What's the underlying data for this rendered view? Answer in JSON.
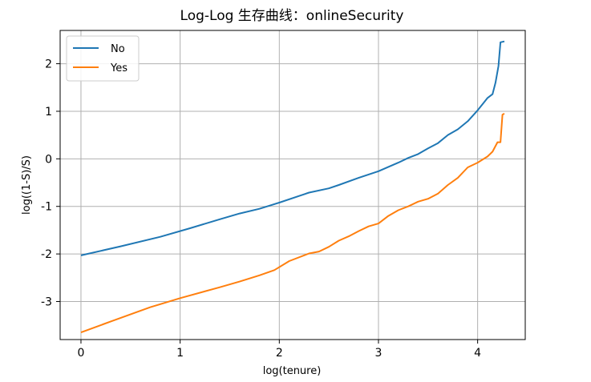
{
  "chart_data": {
    "type": "line",
    "title": "Log-Log 生存曲线：onlineSecurity",
    "xlabel": "log(tenure)",
    "ylabel": "log((1-S)/S)",
    "xlim": [
      -0.21,
      4.48
    ],
    "ylim": [
      -3.8,
      2.7
    ],
    "xticks": [
      0,
      1,
      2,
      3,
      4
    ],
    "xtick_labels": [
      "0",
      "1",
      "2",
      "3",
      "4"
    ],
    "yticks": [
      -3,
      -2,
      -1,
      0,
      1,
      2
    ],
    "ytick_labels": [
      "-3",
      "-2",
      "-1",
      "0",
      "1",
      "2"
    ],
    "grid": true,
    "legend_position": "top-left",
    "series": [
      {
        "name": "No",
        "color": "#1f77b4",
        "points": [
          [
            0,
            -2.03
          ],
          [
            0.4,
            -1.84
          ],
          [
            0.8,
            -1.64
          ],
          [
            1.1,
            -1.46
          ],
          [
            1.4,
            -1.27
          ],
          [
            1.6,
            -1.15
          ],
          [
            1.8,
            -1.05
          ],
          [
            2.0,
            -0.92
          ],
          [
            2.2,
            -0.78
          ],
          [
            2.3,
            -0.71
          ],
          [
            2.5,
            -0.62
          ],
          [
            2.6,
            -0.55
          ],
          [
            2.8,
            -0.4
          ],
          [
            2.9,
            -0.33
          ],
          [
            3.0,
            -0.26
          ],
          [
            3.1,
            -0.17
          ],
          [
            3.2,
            -0.08
          ],
          [
            3.3,
            0.02
          ],
          [
            3.4,
            0.1
          ],
          [
            3.5,
            0.22
          ],
          [
            3.6,
            0.33
          ],
          [
            3.7,
            0.5
          ],
          [
            3.8,
            0.62
          ],
          [
            3.9,
            0.79
          ],
          [
            4.0,
            1.02
          ],
          [
            4.1,
            1.28
          ],
          [
            4.15,
            1.36
          ],
          [
            4.18,
            1.6
          ],
          [
            4.21,
            1.95
          ],
          [
            4.23,
            2.45
          ],
          [
            4.27,
            2.47
          ]
        ]
      },
      {
        "name": "Yes",
        "color": "#ff7f0e",
        "points": [
          [
            0,
            -3.65
          ],
          [
            0.3,
            -3.42
          ],
          [
            0.7,
            -3.12
          ],
          [
            1.0,
            -2.93
          ],
          [
            1.4,
            -2.7
          ],
          [
            1.6,
            -2.58
          ],
          [
            1.8,
            -2.45
          ],
          [
            1.95,
            -2.34
          ],
          [
            2.1,
            -2.15
          ],
          [
            2.3,
            -1.99
          ],
          [
            2.4,
            -1.95
          ],
          [
            2.5,
            -1.85
          ],
          [
            2.6,
            -1.72
          ],
          [
            2.7,
            -1.63
          ],
          [
            2.8,
            -1.52
          ],
          [
            2.9,
            -1.42
          ],
          [
            3.0,
            -1.36
          ],
          [
            3.1,
            -1.2
          ],
          [
            3.2,
            -1.08
          ],
          [
            3.3,
            -1.0
          ],
          [
            3.4,
            -0.9
          ],
          [
            3.5,
            -0.84
          ],
          [
            3.6,
            -0.73
          ],
          [
            3.7,
            -0.55
          ],
          [
            3.8,
            -0.4
          ],
          [
            3.9,
            -0.18
          ],
          [
            4.0,
            -0.08
          ],
          [
            4.1,
            0.05
          ],
          [
            4.15,
            0.15
          ],
          [
            4.2,
            0.35
          ],
          [
            4.23,
            0.35
          ],
          [
            4.25,
            0.93
          ],
          [
            4.27,
            0.95
          ]
        ]
      }
    ]
  }
}
